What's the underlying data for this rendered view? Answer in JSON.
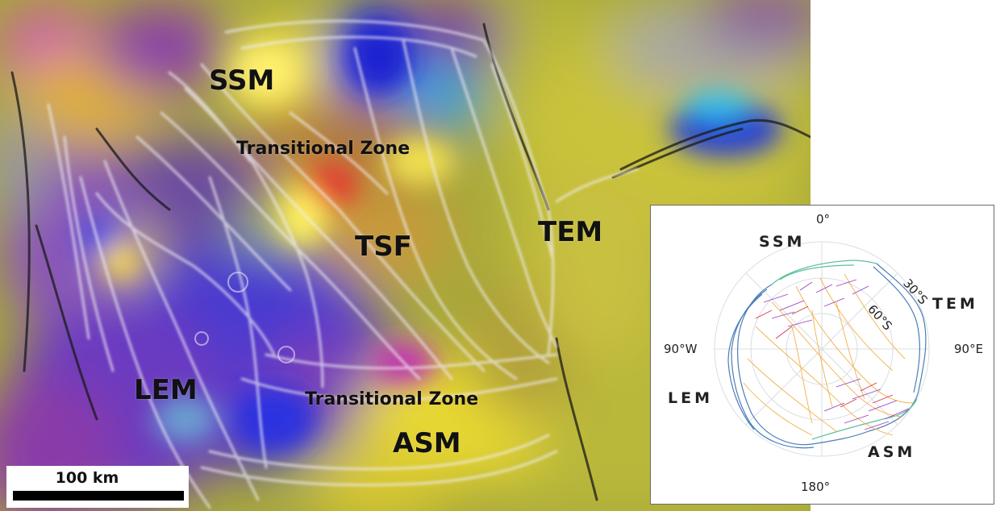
{
  "map": {
    "labels": {
      "ssm": "SSM",
      "transitional_upper": "Transitional Zone",
      "tsf": "TSF",
      "tem": "TEM",
      "lem": "LEM",
      "transitional_lower": "Transitional Zone",
      "asm": "ASM"
    },
    "scale_bar": {
      "label": "100 km"
    }
  },
  "inset": {
    "degrees": {
      "top": "0°",
      "left": "90°W",
      "right": "90°E",
      "bottom": "180°"
    },
    "regions": {
      "ssm": "SSM",
      "tem": "TEM",
      "lem": "LEM",
      "asm": "ASM"
    },
    "latitudes": {
      "lat30": "30°S",
      "lat60": "60°S"
    },
    "colors": {
      "margin_blue": "#4a7db8",
      "margin_green": "#5fbf9a",
      "fracture_orange": "#f2b24a",
      "fracture_purple": "#9b3fbf",
      "fracture_red": "#d6344a"
    }
  }
}
